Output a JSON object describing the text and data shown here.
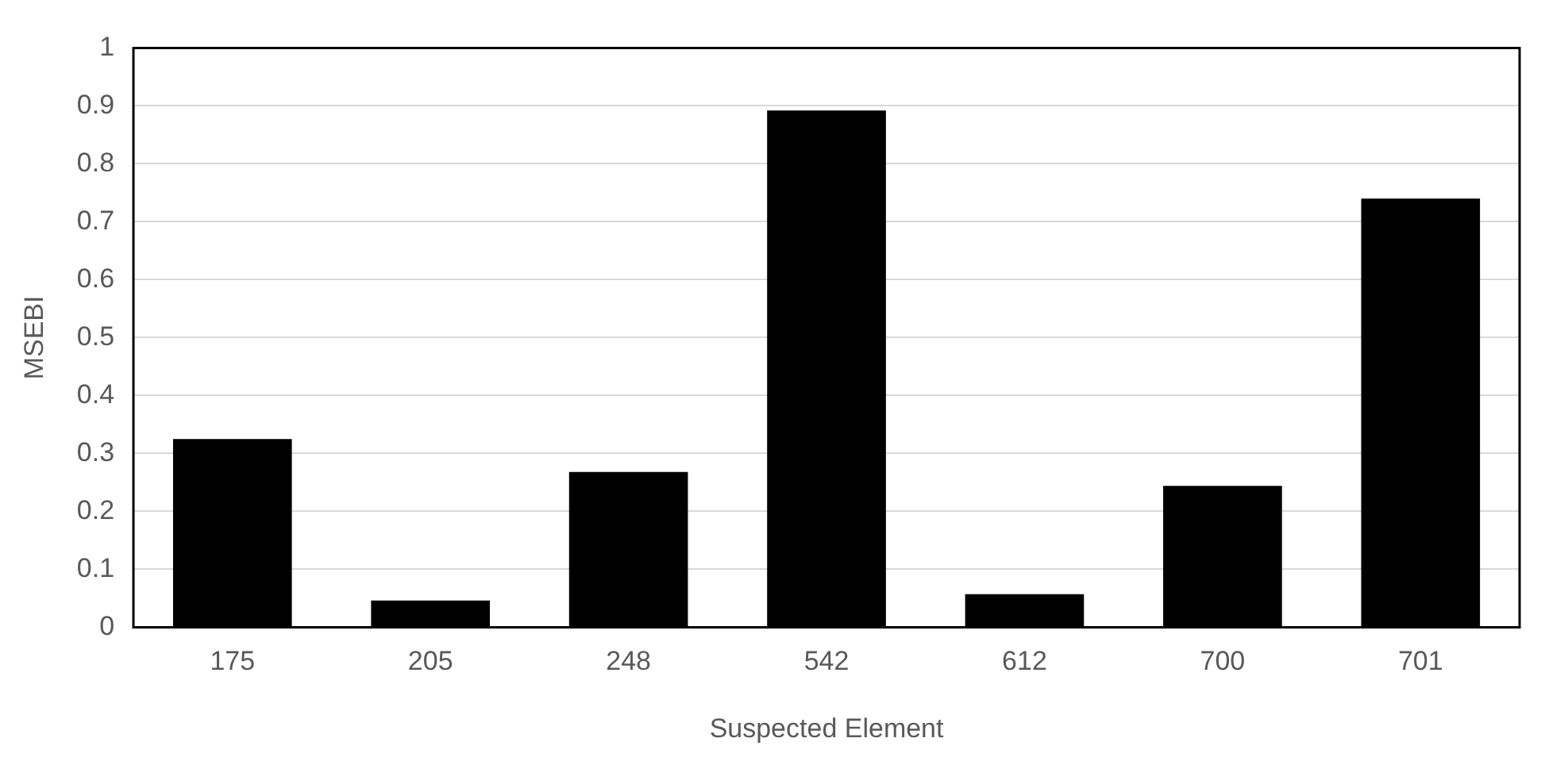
{
  "chart_data": {
    "type": "bar",
    "xlabel": "Suspected Element",
    "ylabel": "MSEBI",
    "categories": [
      "175",
      "205",
      "248",
      "542",
      "612",
      "700",
      "701"
    ],
    "values": [
      0.325,
      0.046,
      0.268,
      0.892,
      0.057,
      0.244,
      0.74
    ],
    "color": "#000000",
    "ylim": [
      0,
      1
    ],
    "yticks": [
      0,
      0.1,
      0.2,
      0.3,
      0.4,
      0.5,
      0.6,
      0.7,
      0.8,
      0.9,
      1
    ],
    "grid": "y",
    "legend": false
  }
}
